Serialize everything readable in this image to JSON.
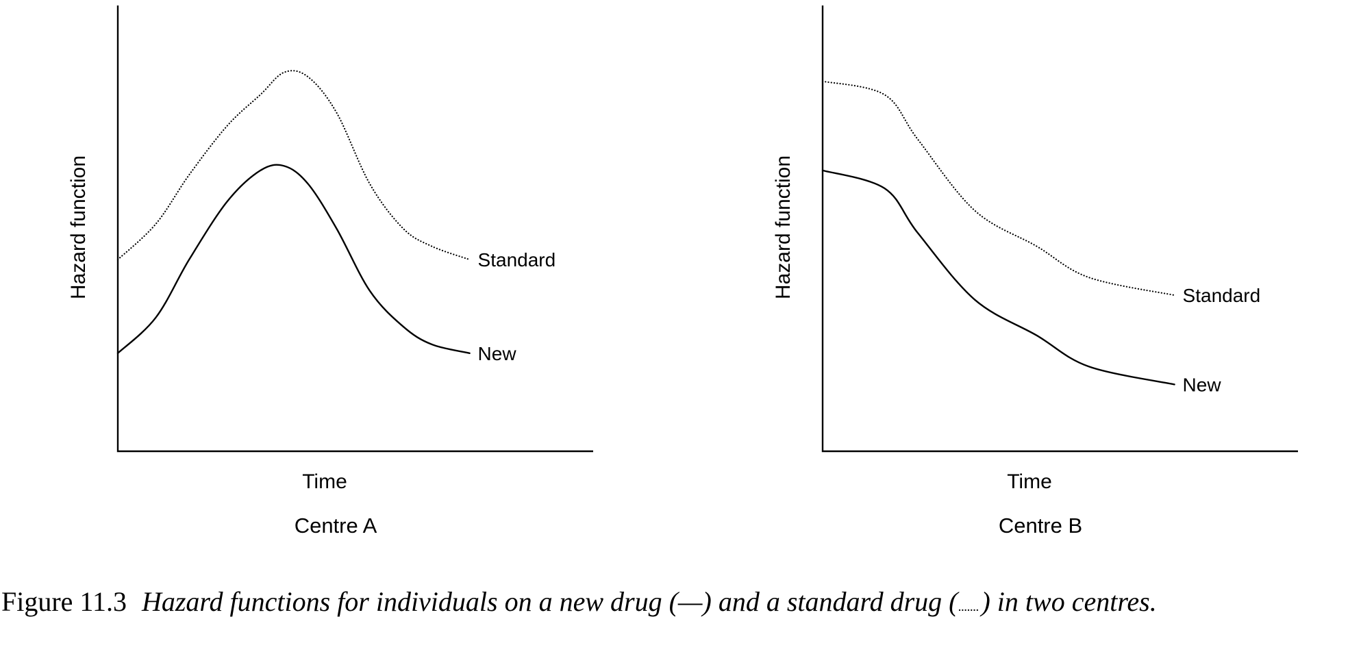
{
  "chart_data": [
    {
      "type": "line",
      "title": "Centre A",
      "xlabel": "Time",
      "ylabel": "Hazard function",
      "xlim": [
        0,
        10
      ],
      "ylim": [
        0,
        10
      ],
      "grid": false,
      "axes": "left-and-bottom",
      "series": [
        {
          "name": "Standard",
          "style": "dotted",
          "x": [
            0,
            0.8,
            1.5,
            2.3,
            3.0,
            3.5,
            4.0,
            4.6,
            5.3,
            6.0,
            6.6,
            7.4
          ],
          "y": [
            4.3,
            5.1,
            6.2,
            7.3,
            8.0,
            8.5,
            8.4,
            7.6,
            6.0,
            5.0,
            4.6,
            4.3
          ]
        },
        {
          "name": "New",
          "style": "solid",
          "x": [
            0,
            0.8,
            1.5,
            2.3,
            3.0,
            3.5,
            4.0,
            4.6,
            5.3,
            6.0,
            6.6,
            7.4
          ],
          "y": [
            2.2,
            3.0,
            4.3,
            5.6,
            6.3,
            6.4,
            6.0,
            5.0,
            3.6,
            2.8,
            2.4,
            2.2
          ]
        }
      ]
    },
    {
      "type": "line",
      "title": "Centre B",
      "xlabel": "Time",
      "ylabel": "Hazard function",
      "xlim": [
        0,
        10
      ],
      "ylim": [
        0,
        10
      ],
      "grid": false,
      "axes": "left-and-bottom",
      "series": [
        {
          "name": "Standard",
          "style": "dotted",
          "x": [
            0,
            1.3,
            2.0,
            3.2,
            4.5,
            5.6,
            7.4
          ],
          "y": [
            8.3,
            8.0,
            7.0,
            5.4,
            4.6,
            3.9,
            3.5
          ]
        },
        {
          "name": "New",
          "style": "solid",
          "x": [
            0,
            1.3,
            2.0,
            3.2,
            4.5,
            5.6,
            7.4
          ],
          "y": [
            6.3,
            5.9,
            4.9,
            3.4,
            2.6,
            1.9,
            1.5
          ]
        }
      ]
    }
  ],
  "caption": {
    "number": "Figure 11.3",
    "text_before_solid": "Hazard functions for individuals on a new drug (",
    "solid_symbol": "—",
    "text_between": ") and a standard drug (",
    "text_after_dotted": ") in two centres.",
    "dotted_symbol": "dotted-line"
  }
}
